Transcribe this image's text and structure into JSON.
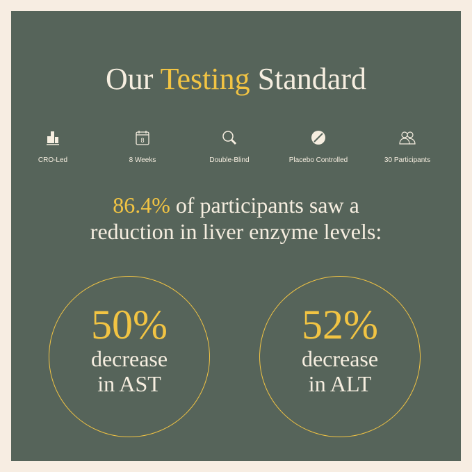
{
  "title": {
    "part1": "Our ",
    "highlight": "Testing",
    "part2": " Standard"
  },
  "features": [
    {
      "icon": "building-icon",
      "label": "CRO-Led"
    },
    {
      "icon": "calendar-icon",
      "label": "8 Weeks",
      "calendar_number": "8"
    },
    {
      "icon": "magnifier-icon",
      "label": "Double-Blind"
    },
    {
      "icon": "pill-icon",
      "label": "Placebo Controlled"
    },
    {
      "icon": "people-icon",
      "label": "30 Participants"
    }
  ],
  "headline": {
    "highlight": "86.4%",
    "line1": " of participants saw a",
    "line2": "reduction in liver enzyme levels:"
  },
  "stats": [
    {
      "value": "50%",
      "line1": "decrease",
      "line2": "in AST"
    },
    {
      "value": "52%",
      "line1": "decrease",
      "line2": "in ALT"
    }
  ],
  "colors": {
    "background": "#f7ede2",
    "panel": "#56645a",
    "accent": "#f2c443",
    "text": "#f6eee0"
  }
}
